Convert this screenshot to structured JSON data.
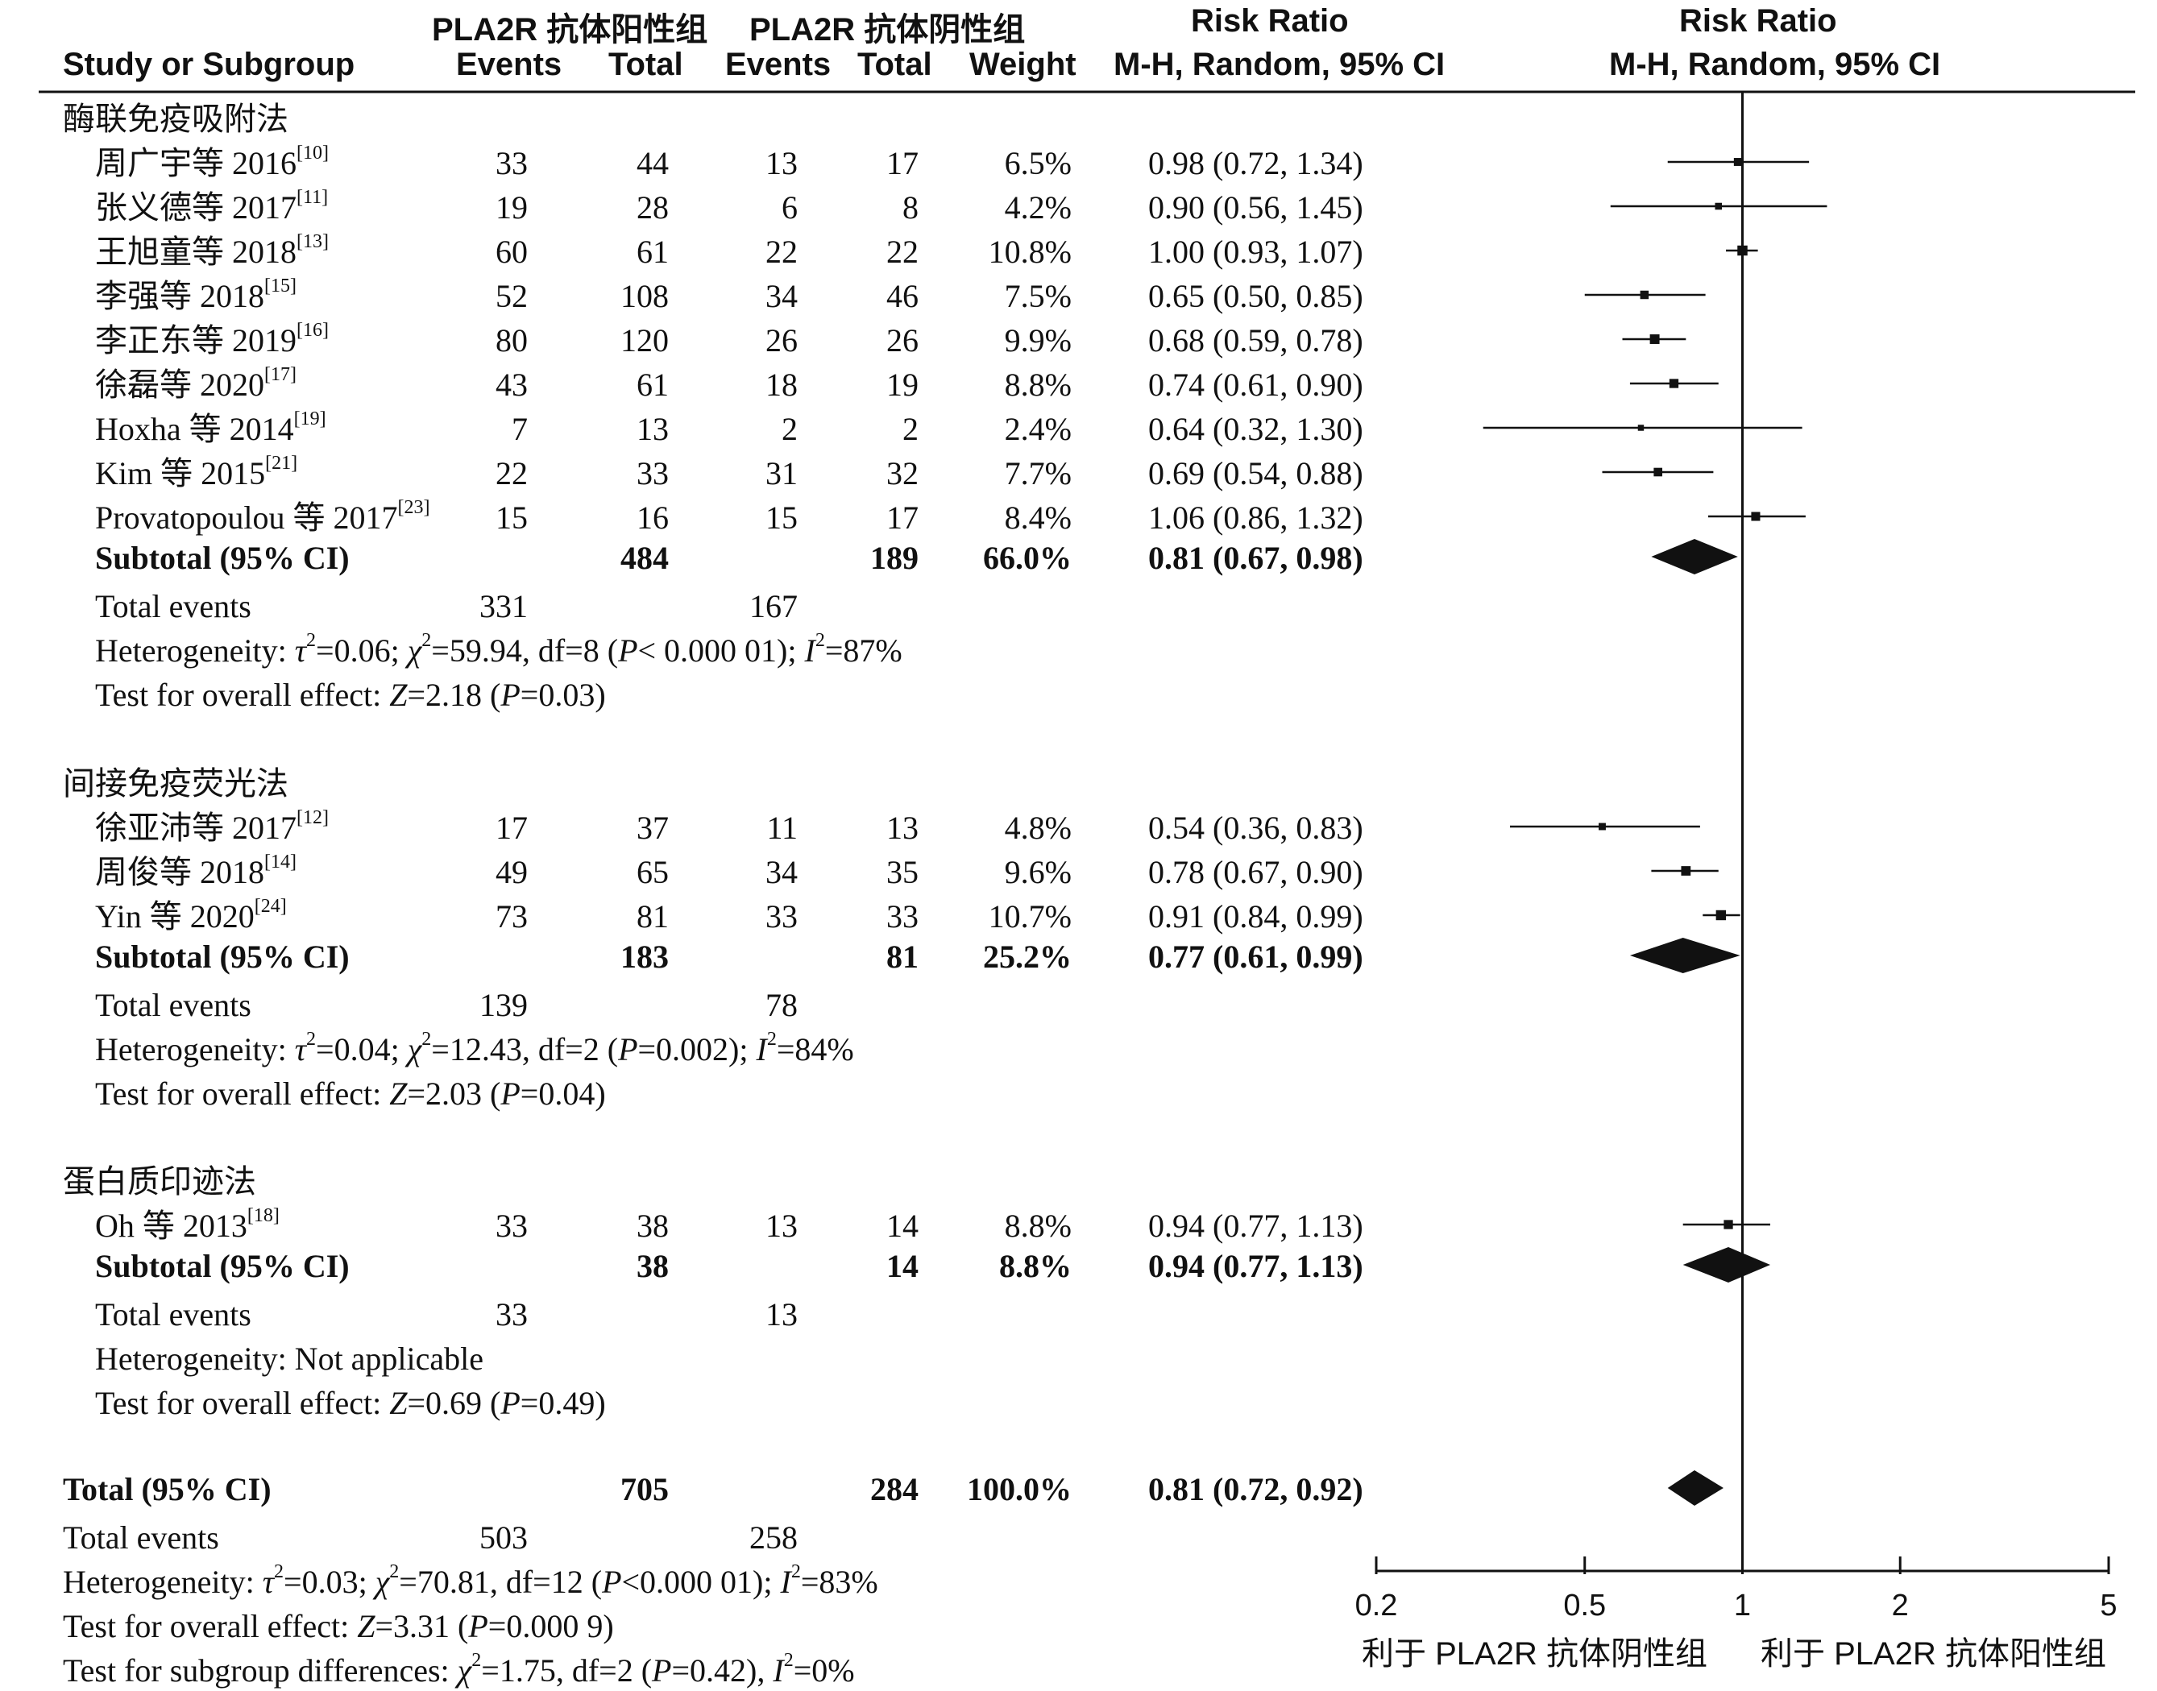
{
  "header": {
    "pos_group": "PLA2R 抗体阳性组",
    "neg_group": "PLA2R 抗体阴性组",
    "study_col": "Study or Subgroup",
    "events": "Events",
    "total": "Total",
    "weight": "Weight",
    "rr_title": "Risk Ratio",
    "rr_method": "M-H, Random, 95% CI",
    "plot_title": "Risk Ratio",
    "plot_method": "M-H, Random, 95% CI"
  },
  "axis": {
    "ticks": [
      "0.2",
      "0.5",
      "1",
      "2",
      "5"
    ],
    "left_label": "利于 PLA2R 抗体阴性组",
    "right_label": "利于 PLA2R 抗体阳性组"
  },
  "chart_data": {
    "type": "forest",
    "scale": "log",
    "xlim": [
      0.2,
      5
    ],
    "reference_line": 1,
    "subgroups": [
      {
        "name": "酶联免疫吸附法",
        "studies": [
          {
            "study": "周广宇等 2016",
            "ref": "[10]",
            "e1": "33",
            "n1": "44",
            "e2": "13",
            "n2": "17",
            "weight": "6.5%",
            "ci_text": "0.98 (0.72, 1.34)",
            "rr": 0.98,
            "lo": 0.72,
            "hi": 1.34
          },
          {
            "study": "张义德等 2017",
            "ref": "[11]",
            "e1": "19",
            "n1": "28",
            "e2": "6",
            "n2": "8",
            "weight": "4.2%",
            "ci_text": "0.90 (0.56, 1.45)",
            "rr": 0.9,
            "lo": 0.56,
            "hi": 1.45
          },
          {
            "study": "王旭童等 2018",
            "ref": "[13]",
            "e1": "60",
            "n1": "61",
            "e2": "22",
            "n2": "22",
            "weight": "10.8%",
            "ci_text": "1.00 (0.93, 1.07)",
            "rr": 1.0,
            "lo": 0.93,
            "hi": 1.07
          },
          {
            "study": "李强等 2018",
            "ref": "[15]",
            "e1": "52",
            "n1": "108",
            "e2": "34",
            "n2": "46",
            "weight": "7.5%",
            "ci_text": "0.65 (0.50, 0.85)",
            "rr": 0.65,
            "lo": 0.5,
            "hi": 0.85
          },
          {
            "study": "李正东等 2019",
            "ref": "[16]",
            "e1": "80",
            "n1": "120",
            "e2": "26",
            "n2": "26",
            "weight": "9.9%",
            "ci_text": "0.68 (0.59, 0.78)",
            "rr": 0.68,
            "lo": 0.59,
            "hi": 0.78
          },
          {
            "study": "徐磊等 2020",
            "ref": "[17]",
            "e1": "43",
            "n1": "61",
            "e2": "18",
            "n2": "19",
            "weight": "8.8%",
            "ci_text": "0.74 (0.61, 0.90)",
            "rr": 0.74,
            "lo": 0.61,
            "hi": 0.9
          },
          {
            "study": "Hoxha 等 2014",
            "ref": "[19]",
            "e1": "7",
            "n1": "13",
            "e2": "2",
            "n2": "2",
            "weight": "2.4%",
            "ci_text": "0.64 (0.32, 1.30)",
            "rr": 0.64,
            "lo": 0.32,
            "hi": 1.3
          },
          {
            "study": "Kim 等 2015",
            "ref": "[21]",
            "e1": "22",
            "n1": "33",
            "e2": "31",
            "n2": "32",
            "weight": "7.7%",
            "ci_text": "0.69 (0.54, 0.88)",
            "rr": 0.69,
            "lo": 0.54,
            "hi": 0.88
          },
          {
            "study": "Provatopoulou 等 2017",
            "ref": "[23]",
            "e1": "15",
            "n1": "16",
            "e2": "15",
            "n2": "17",
            "weight": "8.4%",
            "ci_text": "1.06 (0.86, 1.32)",
            "rr": 1.06,
            "lo": 0.86,
            "hi": 1.32
          }
        ],
        "subtotal": {
          "label": "Subtotal (95% CI)",
          "n1": "484",
          "n2": "189",
          "weight": "66.0%",
          "ci_text": "0.81 (0.67, 0.98)",
          "rr": 0.81,
          "lo": 0.67,
          "hi": 0.98
        },
        "total_events": {
          "label": "Total events",
          "e1": "331",
          "e2": "167"
        },
        "heterogeneity": {
          "label": "Heterogeneity:",
          "tau2": "0.06",
          "chi2": "59.94",
          "df": "8",
          "p": "< 0.000 01",
          "i2": "87%"
        },
        "overall": {
          "label": "Test for overall effect:",
          "z": "2.18",
          "p": "0.03"
        }
      },
      {
        "name": "间接免疫荧光法",
        "studies": [
          {
            "study": "徐亚沛等 2017",
            "ref": "[12]",
            "e1": "17",
            "n1": "37",
            "e2": "11",
            "n2": "13",
            "weight": "4.8%",
            "ci_text": "0.54 (0.36, 0.83)",
            "rr": 0.54,
            "lo": 0.36,
            "hi": 0.83
          },
          {
            "study": "周俊等 2018",
            "ref": "[14]",
            "e1": "49",
            "n1": "65",
            "e2": "34",
            "n2": "35",
            "weight": "9.6%",
            "ci_text": "0.78 (0.67, 0.90)",
            "rr": 0.78,
            "lo": 0.67,
            "hi": 0.9
          },
          {
            "study": "Yin 等 2020",
            "ref": "[24]",
            "e1": "73",
            "n1": "81",
            "e2": "33",
            "n2": "33",
            "weight": "10.7%",
            "ci_text": "0.91 (0.84, 0.99)",
            "rr": 0.91,
            "lo": 0.84,
            "hi": 0.99
          }
        ],
        "subtotal": {
          "label": "Subtotal (95% CI)",
          "n1": "183",
          "n2": "81",
          "weight": "25.2%",
          "ci_text": "0.77 (0.61, 0.99)",
          "rr": 0.77,
          "lo": 0.61,
          "hi": 0.99
        },
        "total_events": {
          "label": "Total events",
          "e1": "139",
          "e2": "78"
        },
        "heterogeneity": {
          "label": "Heterogeneity:",
          "tau2": "0.04",
          "chi2": "12.43",
          "df": "2",
          "p": "0.002",
          "i2": "84%"
        },
        "overall": {
          "label": "Test for overall effect:",
          "z": "2.03",
          "p": "0.04"
        }
      },
      {
        "name": "蛋白质印迹法",
        "studies": [
          {
            "study": "Oh 等 2013",
            "ref": "[18]",
            "e1": "33",
            "n1": "38",
            "e2": "13",
            "n2": "14",
            "weight": "8.8%",
            "ci_text": "0.94 (0.77, 1.13)",
            "rr": 0.94,
            "lo": 0.77,
            "hi": 1.13
          }
        ],
        "subtotal": {
          "label": "Subtotal (95% CI)",
          "n1": "38",
          "n2": "14",
          "weight": "8.8%",
          "ci_text": "0.94 (0.77, 1.13)",
          "rr": 0.94,
          "lo": 0.77,
          "hi": 1.13
        },
        "total_events": {
          "label": "Total events",
          "e1": "33",
          "e2": "13"
        },
        "heterogeneity": {
          "label": "Heterogeneity: Not applicable"
        },
        "overall": {
          "label": "Test for overall effect:",
          "z": "0.69",
          "p": "0.49"
        }
      }
    ],
    "total": {
      "label": "Total (95% CI)",
      "n1": "705",
      "n2": "284",
      "weight": "100.0%",
      "ci_text": "0.81 (0.72, 0.92)",
      "rr": 0.81,
      "lo": 0.72,
      "hi": 0.92
    },
    "total_events": {
      "label": "Total events",
      "e1": "503",
      "e2": "258"
    },
    "heterogeneity": {
      "label": "Heterogeneity:",
      "tau2": "0.03",
      "chi2": "70.81",
      "df": "12",
      "p": "<0.000 01",
      "i2": "83%"
    },
    "overall": {
      "label": "Test for overall effect:",
      "z": "3.31",
      "p": "0.000 9"
    },
    "subgroup_diff": {
      "label": "Test for subgroup differences:",
      "chi2": "1.75",
      "df": "2",
      "p": "0.42",
      "i2": "0%"
    }
  }
}
